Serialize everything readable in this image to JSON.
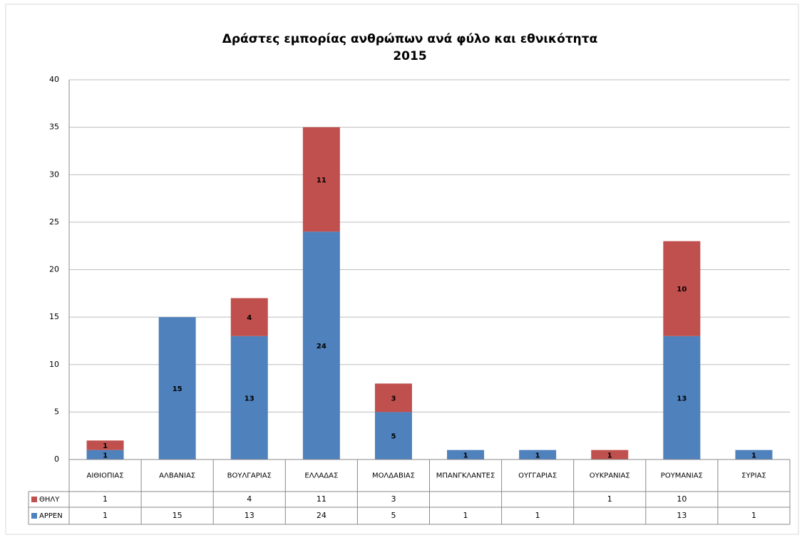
{
  "chart_data": {
    "type": "stacked_bar",
    "title": "Δράστες εμπορίας ανθρώπων ανά φύλο και εθνικότητα",
    "subtitle": "2015",
    "categories": [
      "ΑΙΘΙΟΠΙΑΣ",
      "ΑΛΒΑΝΙΑΣ",
      "ΒΟΥΛΓΑΡΙΑΣ",
      "ΕΛΛΑΔΑΣ",
      "ΜΟΛΔΑΒΙΑΣ",
      "ΜΠΑΝΓΚΛΑΝΤΕΣ",
      "ΟΥΓΓΑΡΙΑΣ",
      "ΟΥΚΡΑΝΙΑΣ",
      "ΡΟΥΜΑΝΙΑΣ",
      "ΣΥΡΙΑΣ"
    ],
    "series": [
      {
        "name": "ΑΡΡΕΝ",
        "color": "#4f81bd",
        "values": [
          1,
          15,
          13,
          24,
          5,
          1,
          1,
          null,
          13,
          1
        ]
      },
      {
        "name": "ΘΗΛΥ",
        "color": "#c0504d",
        "values": [
          1,
          null,
          4,
          11,
          3,
          null,
          null,
          1,
          10,
          null
        ]
      }
    ],
    "ylim": [
      0,
      40
    ],
    "yticks": [
      0,
      5,
      10,
      15,
      20,
      25,
      30,
      35,
      40
    ],
    "grid": true
  }
}
